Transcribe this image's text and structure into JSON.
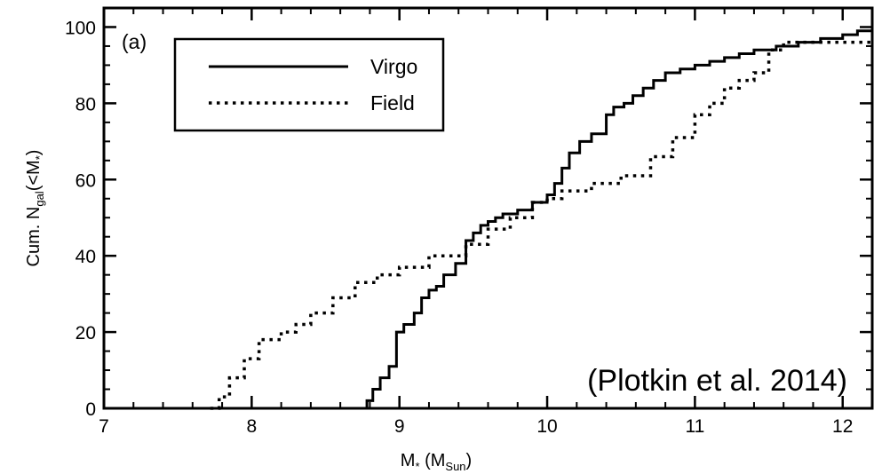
{
  "chart_data": {
    "type": "line",
    "panel_label": "(a)",
    "xlabel": "M* (MSun)",
    "xlabel_parts": {
      "main": "M",
      "main_sub": "*",
      "mid": " (M",
      "mid_sub": "Sun",
      "end": ")"
    },
    "ylabel": "Cum. Ngal(<M*)",
    "ylabel_parts": {
      "main": "Cum. N",
      "main_sub": "gal",
      "mid": "(<M",
      "mid_sub": "*",
      "end": ")"
    },
    "xlim": [
      7,
      12.2
    ],
    "ylim": [
      0,
      105
    ],
    "xticks": [
      7,
      8,
      9,
      10,
      11,
      12
    ],
    "yticks": [
      0,
      20,
      40,
      60,
      80,
      100
    ],
    "legend_position": "top-left",
    "annotation": "(Plotkin et al. 2014)",
    "series": [
      {
        "name": "Virgo",
        "style": "solid",
        "x": [
          8.7,
          8.78,
          8.82,
          8.87,
          8.93,
          8.98,
          9.03,
          9.1,
          9.15,
          9.2,
          9.25,
          9.3,
          9.38,
          9.45,
          9.5,
          9.55,
          9.6,
          9.65,
          9.7,
          9.8,
          9.9,
          10.0,
          10.05,
          10.1,
          10.15,
          10.22,
          10.3,
          10.4,
          10.45,
          10.52,
          10.58,
          10.65,
          10.72,
          10.8,
          10.9,
          11.0,
          11.1,
          11.2,
          11.3,
          11.4,
          11.55,
          11.7,
          11.85,
          12.0,
          12.1,
          12.2
        ],
        "y": [
          0,
          2,
          5,
          8,
          11,
          20,
          22,
          25,
          29,
          31,
          32,
          35,
          38,
          44,
          46,
          48,
          49,
          50,
          51,
          52,
          54,
          56,
          59,
          63,
          67,
          70,
          72,
          77,
          79,
          80,
          82,
          84,
          86,
          88,
          89,
          90,
          91,
          92,
          93,
          94,
          95,
          96,
          97,
          98,
          99,
          100
        ]
      },
      {
        "name": "Field",
        "style": "dotted",
        "x": [
          7.72,
          7.78,
          7.85,
          7.95,
          8.05,
          8.2,
          8.3,
          8.4,
          8.55,
          8.7,
          8.85,
          9.0,
          9.2,
          9.45,
          9.6,
          9.75,
          9.9,
          10.0,
          10.1,
          10.3,
          10.5,
          10.7,
          10.85,
          11.0,
          11.1,
          11.2,
          11.3,
          11.4,
          11.5,
          11.6,
          11.75,
          11.9,
          12.0,
          12.2
        ],
        "y": [
          0,
          3,
          8,
          13,
          18,
          20,
          22,
          25,
          29,
          33,
          35,
          37,
          40,
          43,
          47,
          50,
          54,
          55,
          57,
          59,
          61,
          66,
          71,
          77,
          80,
          84,
          86,
          88,
          94,
          96,
          96,
          96,
          96,
          96
        ]
      }
    ]
  }
}
